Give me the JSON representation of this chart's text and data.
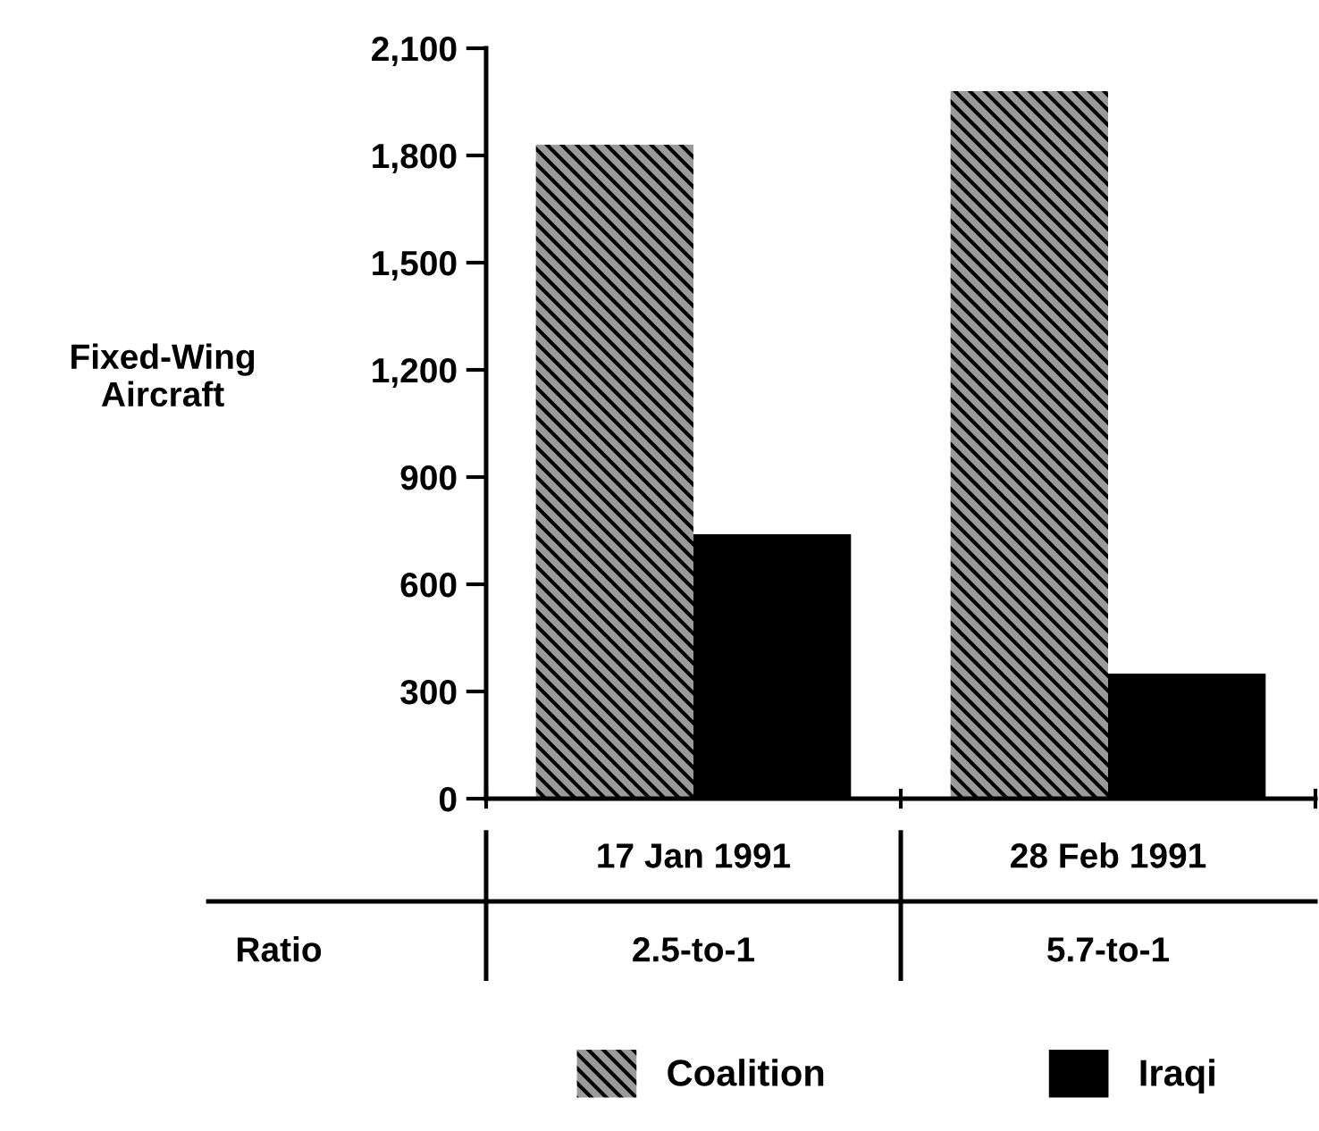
{
  "chart_data": {
    "type": "bar",
    "ylabel": "Fixed-Wing\nAircraft",
    "categories": [
      "17 Jan 1991",
      "28 Feb 1991"
    ],
    "series": [
      {
        "name": "Coalition",
        "color": "#9a9a9a",
        "values": [
          1830,
          1980
        ]
      },
      {
        "name": "Iraqi",
        "color": "#000000",
        "values": [
          740,
          350
        ]
      }
    ],
    "ylim": [
      0,
      2100
    ],
    "yticks": [
      {
        "value": 0,
        "label": "0"
      },
      {
        "value": 300,
        "label": "300"
      },
      {
        "value": 600,
        "label": "600"
      },
      {
        "value": 900,
        "label": "900"
      },
      {
        "value": 1200,
        "label": "1,200"
      },
      {
        "value": 1500,
        "label": "1,500"
      },
      {
        "value": 1800,
        "label": "1,800"
      },
      {
        "value": 2100,
        "label": "2,100"
      }
    ],
    "grid": false,
    "legend": "bottom",
    "annotations": [
      "Ratio",
      "2.5-to-1",
      "5.7-to-1"
    ]
  }
}
